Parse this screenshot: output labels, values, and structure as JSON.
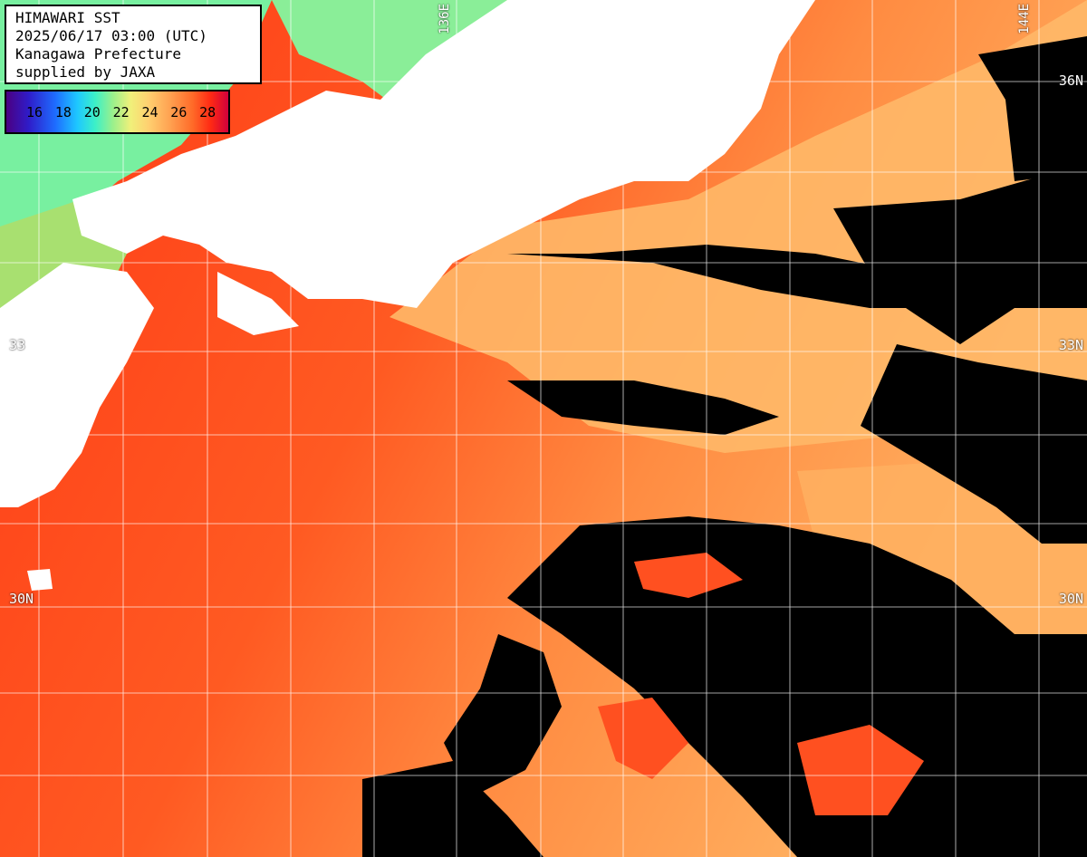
{
  "header": {
    "title": "HIMAWARI SST",
    "datetime": "2025/06/17 03:00 (UTC)",
    "region": "Kanagawa Prefecture",
    "credit": "supplied by JAXA"
  },
  "colorbar": {
    "ticks": [
      "16",
      "18",
      "20",
      "22",
      "24",
      "26",
      "28"
    ]
  },
  "grid": {
    "lat_labels": [
      {
        "text": "36N",
        "side": "right"
      },
      {
        "text": "33N",
        "side": "right"
      },
      {
        "text": "33",
        "side": "left"
      },
      {
        "text": "30N",
        "side": "left"
      },
      {
        "text": "30N",
        "side": "right"
      }
    ],
    "lon_labels": [
      {
        "text": "136E"
      },
      {
        "text": "144E"
      }
    ]
  },
  "colors": {
    "land": "#ffffff",
    "cloud": "#000000",
    "warm": "#ff4a1e",
    "mid": "#ff9a4a",
    "cool": "#ffc070",
    "cold": "#6ef0a0"
  }
}
